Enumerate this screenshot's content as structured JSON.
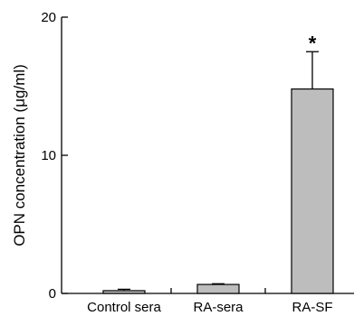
{
  "chart_data": {
    "type": "bar",
    "title": "",
    "xlabel": "",
    "ylabel": "OPN concentration (μg/ml)",
    "ylim": [
      0,
      20
    ],
    "yticks": [
      0,
      10,
      20
    ],
    "ytick_labels": [
      "0",
      "10",
      "20"
    ],
    "categories": [
      "Control sera",
      "RA-sera",
      "RA-SF"
    ],
    "values": [
      0.2,
      0.65,
      14.8
    ],
    "error_upper": [
      0.1,
      0.05,
      2.7
    ],
    "annotations": [
      "",
      "",
      "*"
    ],
    "grid": false,
    "colors": {
      "bar_fill": "#bdbdbd",
      "bar_stroke": "#000000"
    }
  }
}
